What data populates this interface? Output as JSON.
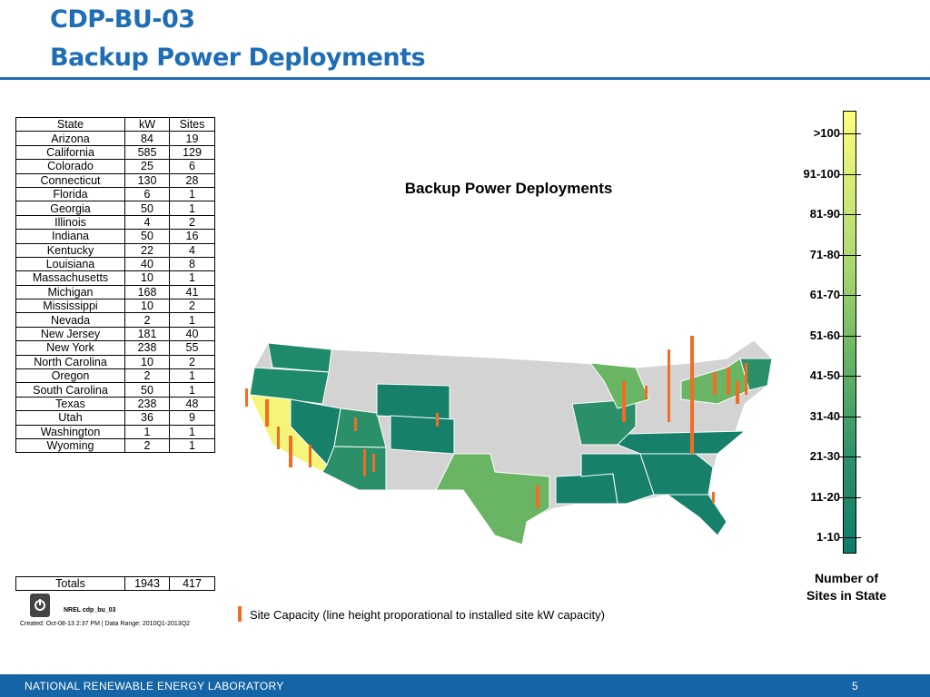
{
  "header": {
    "title_line1": "CDP-BU-03",
    "title_line2": "Backup Power Deployments"
  },
  "table": {
    "columns": [
      "State",
      "kW",
      "Sites"
    ],
    "rows": [
      [
        "Arizona",
        "84",
        "19"
      ],
      [
        "California",
        "585",
        "129"
      ],
      [
        "Colorado",
        "25",
        "6"
      ],
      [
        "Connecticut",
        "130",
        "28"
      ],
      [
        "Florida",
        "6",
        "1"
      ],
      [
        "Georgia",
        "50",
        "1"
      ],
      [
        "Illinois",
        "4",
        "2"
      ],
      [
        "Indiana",
        "50",
        "16"
      ],
      [
        "Kentucky",
        "22",
        "4"
      ],
      [
        "Louisiana",
        "40",
        "8"
      ],
      [
        "Massachusetts",
        "10",
        "1"
      ],
      [
        "Michigan",
        "168",
        "41"
      ],
      [
        "Mississippi",
        "10",
        "2"
      ],
      [
        "Nevada",
        "2",
        "1"
      ],
      [
        "New Jersey",
        "181",
        "40"
      ],
      [
        "New York",
        "238",
        "55"
      ],
      [
        "North Carolina",
        "10",
        "2"
      ],
      [
        "Oregon",
        "2",
        "1"
      ],
      [
        "South Carolina",
        "50",
        "1"
      ],
      [
        "Texas",
        "238",
        "48"
      ],
      [
        "Utah",
        "36",
        "9"
      ],
      [
        "Washington",
        "1",
        "1"
      ],
      [
        "Wyoming",
        "2",
        "1"
      ]
    ],
    "totals": [
      "Totals",
      "1943",
      "417"
    ]
  },
  "nrel_label": "NREL cdp_bu_03",
  "created": "Created: Oct-08-13  2:37 PM | Data Range: 2010Q1-2013Q2",
  "map": {
    "title": "Backup Power Deployments",
    "legend": "Site Capacity (line height proporational to installed site kW capacity)"
  },
  "colorbar": {
    "labels": [
      ">100",
      "91-100",
      "81-90",
      "71-80",
      "61-70",
      "51-60",
      "41-50",
      "31-40",
      "21-30",
      "11-20",
      "1-10"
    ],
    "title_line1": "Number of",
    "title_line2": "Sites in State"
  },
  "footer": {
    "org": "NATIONAL RENEWABLE ENERGY LABORATORY",
    "page": "5"
  }
}
